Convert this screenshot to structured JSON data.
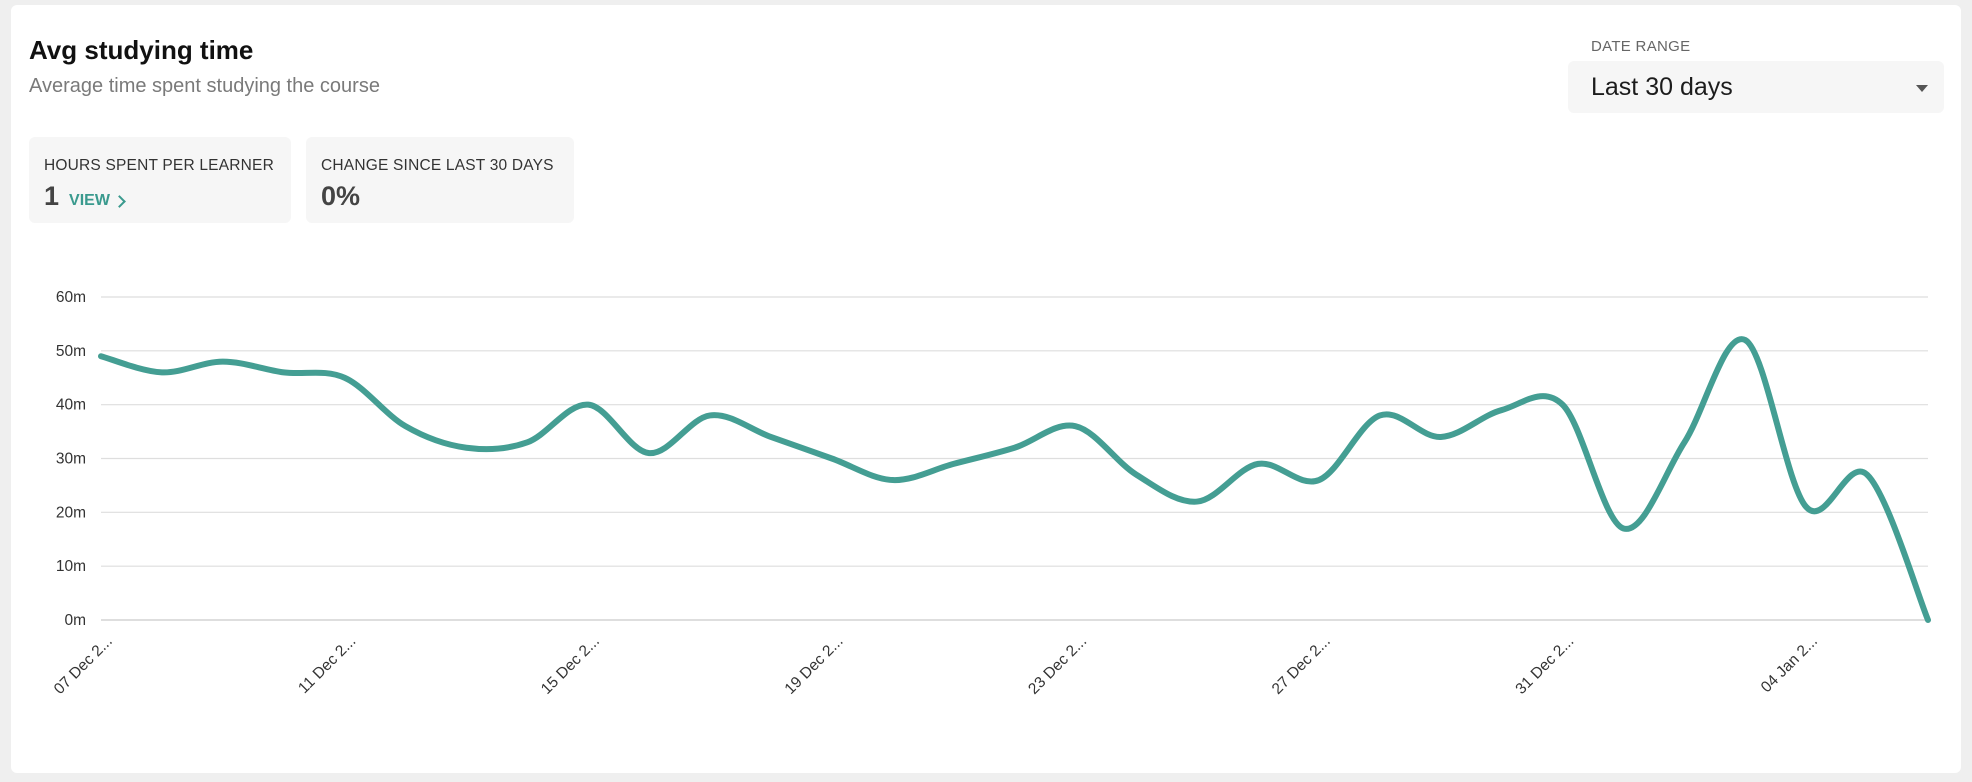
{
  "header": {
    "title": "Avg studying time",
    "subtitle": "Average time spent studying the course"
  },
  "date_range": {
    "label": "DATE RANGE",
    "value": "Last 30 days"
  },
  "stats": {
    "hours": {
      "label": "HOURS SPENT PER LEARNER",
      "value": "1",
      "link": "VIEW"
    },
    "change": {
      "label": "CHANGE SINCE LAST 30 DAYS",
      "value": "0%"
    }
  },
  "colors": {
    "line": "#449e93",
    "grid": "#dedede",
    "accent": "#3a9a8e"
  },
  "chart_data": {
    "type": "line",
    "x_tick_labels": [
      "07 Dec 2...",
      "11 Dec 2...",
      "15 Dec 2...",
      "19 Dec 2...",
      "23 Dec 2...",
      "27 Dec 2...",
      "31 Dec 2...",
      "04 Jan 2..."
    ],
    "y_tick_labels": [
      "0m",
      "10m",
      "20m",
      "30m",
      "40m",
      "50m",
      "60m"
    ],
    "ylim": [
      0,
      60
    ],
    "grid": true,
    "series": [
      {
        "values": [
          49,
          46,
          48,
          46,
          45,
          36,
          32,
          33,
          40,
          31,
          38,
          34,
          30,
          26,
          29,
          32,
          36,
          27,
          22,
          29,
          26,
          38,
          34,
          39,
          40,
          17,
          33,
          52,
          21,
          27,
          0
        ]
      }
    ]
  }
}
